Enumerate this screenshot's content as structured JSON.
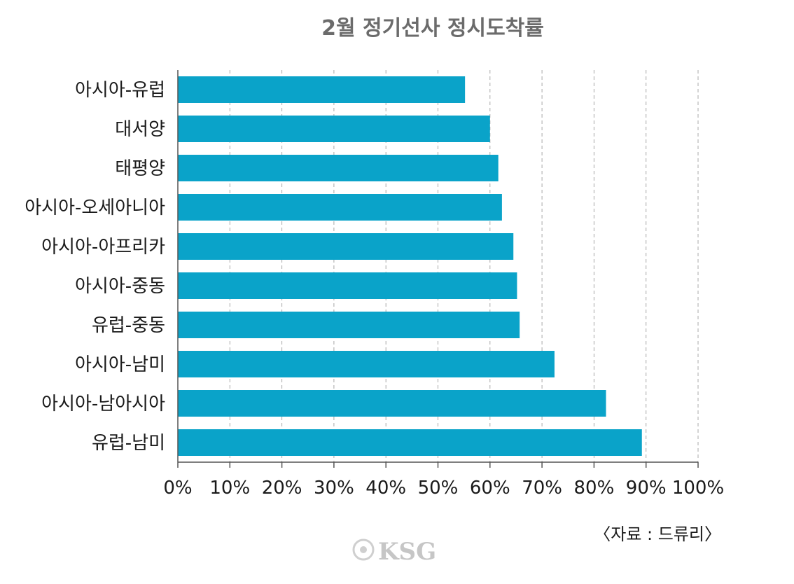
{
  "chart_data": {
    "type": "bar",
    "orientation": "horizontal",
    "title": "2월 정기선사 정시도착률",
    "categories": [
      "아시아-유럽",
      "대서양",
      "태평양",
      "아시아-오세아니아",
      "아시아-아프리카",
      "아시아-중동",
      "유럽-중동",
      "아시아-남미",
      "아시아-남아시아",
      "유럽-남미"
    ],
    "values": [
      55.2,
      60.0,
      61.6,
      62.3,
      64.5,
      65.2,
      65.7,
      72.4,
      82.3,
      89.2
    ],
    "xlim": [
      0,
      100
    ],
    "ticks": [
      "0%",
      "10%",
      "20%",
      "30%",
      "40%",
      "50%",
      "60%",
      "70%",
      "80%",
      "90%",
      "100%"
    ],
    "grid": "vertical dashed",
    "bar_color": "#0aa3c9",
    "source": "〈자료 : 드류리〉"
  },
  "watermark": "KSG"
}
